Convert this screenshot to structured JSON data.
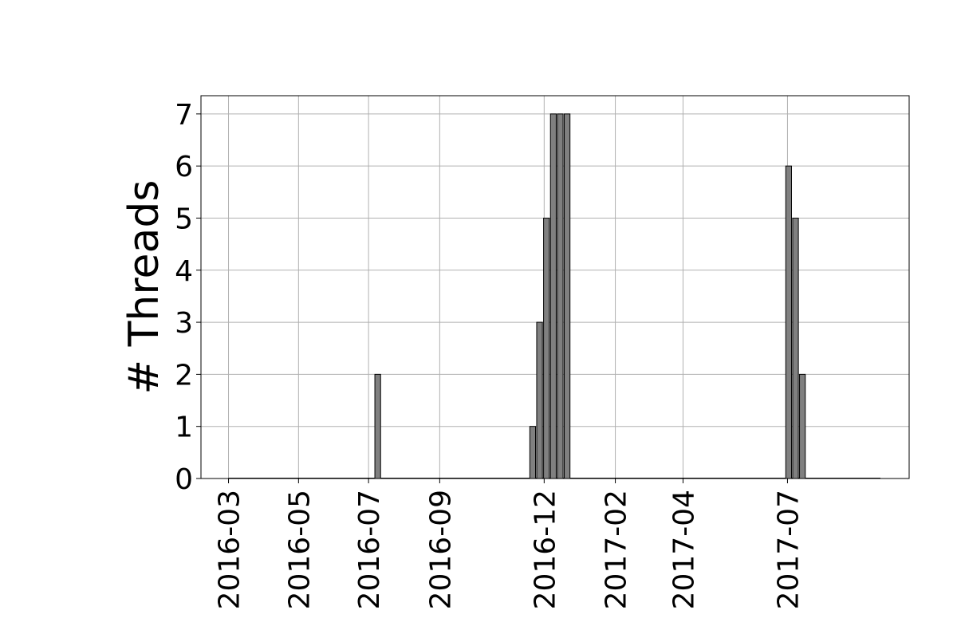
{
  "chart_data": {
    "type": "bar",
    "xlabel": "",
    "ylabel": "# Threads",
    "ylim": [
      0,
      7.35
    ],
    "yticks": [
      0,
      1,
      2,
      3,
      4,
      5,
      6,
      7
    ],
    "xlim": [
      "2016-02-06",
      "2017-10-15"
    ],
    "xticks": [
      "2016-03-01",
      "2016-05-01",
      "2016-07-01",
      "2016-09-01",
      "2016-12-01",
      "2017-02-01",
      "2017-04-01",
      "2017-07-01"
    ],
    "xtick_labels": [
      "2016-03",
      "2016-05",
      "2016-07",
      "2016-09",
      "2016-12",
      "2017-02",
      "2017-04",
      "2017-07"
    ],
    "bar_width_days": 5,
    "grid": true,
    "bars": [
      {
        "date": "2016-07-09",
        "value": 2
      },
      {
        "date": "2016-11-21",
        "value": 1
      },
      {
        "date": "2016-11-27",
        "value": 3
      },
      {
        "date": "2016-12-03",
        "value": 5
      },
      {
        "date": "2016-12-09",
        "value": 7
      },
      {
        "date": "2016-12-15",
        "value": 7
      },
      {
        "date": "2016-12-21",
        "value": 7
      },
      {
        "date": "2017-07-02",
        "value": 6
      },
      {
        "date": "2017-07-08",
        "value": 5
      },
      {
        "date": "2017-07-14",
        "value": 2
      }
    ],
    "colors": {
      "bar_fill": "#808080",
      "bar_edge": "#000000",
      "grid": "#b0b0b0"
    }
  }
}
